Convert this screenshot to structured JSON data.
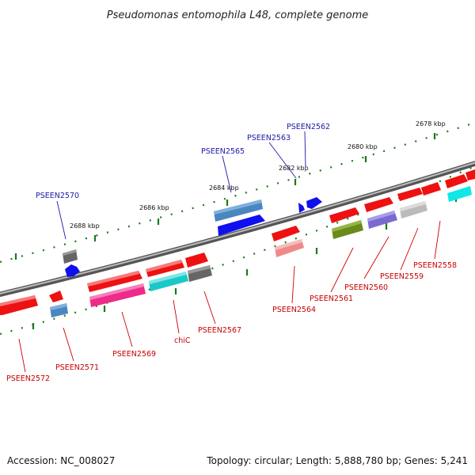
{
  "title": "Pseudomonas entomophila L48, complete genome",
  "footer": {
    "accession": "Accession: NC_008027",
    "summary": "Topology: circular; Length: 5,888,780 bp; Genes: 5,241"
  },
  "scale_labels": [
    "2678 kbp",
    "2680 kbp",
    "2682 kbp",
    "2684 kbp",
    "2686 kbp",
    "2688 kbp"
  ],
  "gene_labels": {
    "blue": [
      "PSEEN2562",
      "PSEEN2563",
      "PSEEN2565",
      "PSEEN2570"
    ],
    "red": [
      "PSEEN2558",
      "PSEEN2559",
      "PSEEN2560",
      "PSEEN2561",
      "PSEEN2564",
      "PSEEN2567",
      "chiC",
      "PSEEN2569",
      "PSEEN2571",
      "PSEEN2572"
    ]
  },
  "colors": {
    "backbone": "#8a8a8a",
    "forward_label": "#1a1aa8",
    "reverse_label": "#c80000",
    "tick": "#1a7a1a",
    "red_gene": "#ee1111",
    "blue_gene": "#1010ee",
    "steelblue_gene": "#4a86c0",
    "magenta_gene": "#ee2a8a",
    "cyan_gene": "#1ac8c8",
    "olive_gene": "#6a8a1a",
    "purple_gene": "#7a6ad0",
    "pink_gene": "#ee8a8a",
    "gray_gene": "#666666",
    "lightgray_gene": "#bbbbbb",
    "aqua_gene": "#10e8e8"
  }
}
